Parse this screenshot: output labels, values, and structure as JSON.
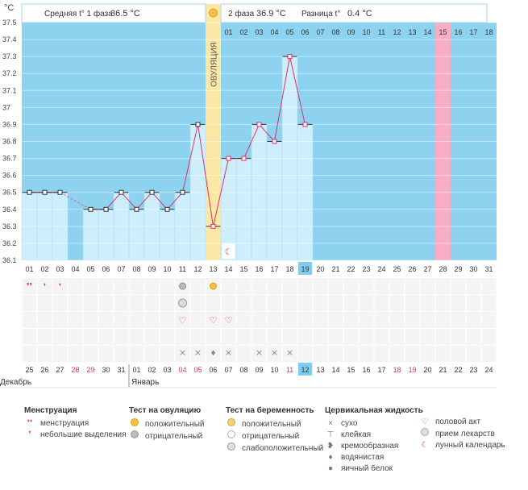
{
  "header": {
    "unit": "°C",
    "phase1_label": "Средняя t° 1 фаза",
    "phase1_value": "36.5 °C",
    "phase2_label": "2 фаза",
    "phase2_value": "36.9 °C",
    "diff_label": "Разница t°",
    "diff_value": "0.4 °C",
    "ovulation_label": "ОВУЛЯЦИЯ"
  },
  "chart_data": {
    "type": "line",
    "ylim": [
      36.1,
      37.5
    ],
    "yticks": [
      "36.1",
      "36.2",
      "36.3",
      "36.4",
      "36.5",
      "36.6",
      "36.7",
      "36.8",
      "36.9",
      "37",
      "37.1",
      "37.2",
      "37.3",
      "37.4",
      "37.5"
    ],
    "cycle_days": [
      "01",
      "02",
      "03",
      "04",
      "05",
      "06",
      "07",
      "08",
      "09",
      "10",
      "11",
      "12",
      "13",
      "14",
      "15",
      "16",
      "17",
      "18",
      "19",
      "20",
      "21",
      "22",
      "23",
      "24",
      "25",
      "26",
      "27",
      "28",
      "29",
      "30",
      "31"
    ],
    "phase2_days": [
      "01",
      "02",
      "03",
      "04",
      "05",
      "06",
      "07",
      "08",
      "09",
      "10",
      "11",
      "12",
      "13",
      "14",
      "15",
      "16",
      "17",
      "18"
    ],
    "calendar_dates": [
      "25",
      "26",
      "27",
      "28",
      "29",
      "30",
      "31",
      "01",
      "02",
      "03",
      "04",
      "05",
      "06",
      "07",
      "08",
      "09",
      "10",
      "11",
      "12",
      "13",
      "14",
      "15",
      "16",
      "17",
      "18",
      "19",
      "20",
      "21",
      "22",
      "23",
      "24"
    ],
    "red_dates": [
      "28",
      "29",
      "04",
      "05",
      "11",
      "18",
      "19"
    ],
    "month_labels": [
      "Декабрь",
      "Январь"
    ],
    "temperatures": [
      36.5,
      36.5,
      36.5,
      null,
      36.4,
      36.4,
      36.5,
      36.4,
      36.5,
      36.4,
      36.5,
      36.9,
      36.3,
      36.7,
      36.7,
      36.9,
      36.8,
      37.3,
      36.9
    ],
    "ovulation_day": "13",
    "today_day": "19",
    "today_date": "12",
    "highlight_phase2_day": "15",
    "colors": {
      "bg": "#8dd3f0",
      "bar": "#cfeefc",
      "ovulation": "#fbe8a6",
      "highlight": "#f7adc4",
      "line": "#e0306a",
      "today": "#7ecdf0"
    },
    "markers": {
      "menstruation": [
        "01"
      ],
      "spotting": [
        "02",
        "03"
      ],
      "ovulation_test_negative": [
        "11"
      ],
      "ovulation_test_positive": [
        "13"
      ],
      "pregnancy_test_weak": [
        "11"
      ],
      "sex": [
        "11",
        "13",
        "14"
      ],
      "cervical_dry": [
        "11",
        "12",
        "14",
        "16",
        "17",
        "18"
      ],
      "cervical_watery": [
        "13"
      ],
      "lunar": [
        "14"
      ]
    }
  },
  "legend": {
    "menstruation": {
      "title": "Менструация",
      "items": [
        "менструация",
        "небольшие выделения"
      ]
    },
    "ovulation_test": {
      "title": "Тест на овуляцию",
      "items": [
        "положительный",
        "отрицательный"
      ]
    },
    "pregnancy_test": {
      "title": "Тест на беременность",
      "items": [
        "положительный",
        "отрицательный",
        "слабоположительный"
      ]
    },
    "cervical": {
      "title": "Цервикальная жидкость",
      "items": [
        "сухо",
        "клейкая",
        "кремообразная",
        "водянистая",
        "яичный белок"
      ]
    },
    "other": {
      "items": [
        "половой акт",
        "прием лекарств",
        "лунный календарь"
      ]
    }
  }
}
